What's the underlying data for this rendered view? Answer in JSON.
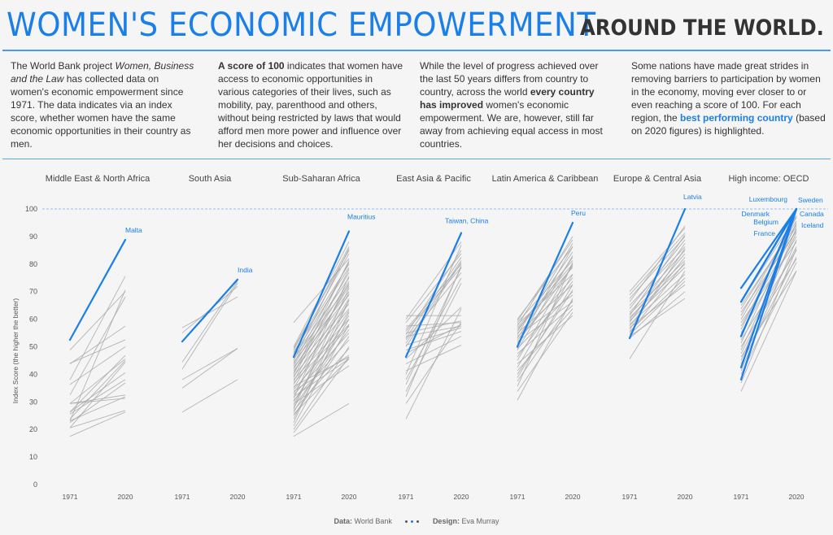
{
  "header": {
    "title_main": "WOMEN'S ECONOMIC EMPOWERMENT",
    "title_sub": "AROUND THE WORLD."
  },
  "intro": [
    {
      "parts": [
        {
          "t": "The World Bank project "
        },
        {
          "t": "Women, Business and the Law",
          "i": true
        },
        {
          "t": " has collected data on women's economic empowerment since 1971. The data indicates via an index score, whether women have the same economic opportunities in their country as men."
        }
      ]
    },
    {
      "parts": [
        {
          "t": "A score of 100",
          "b": true
        },
        {
          "t": " indicates that women have access to economic opportunities in various categories of their lives, such as mobility, pay, parenthood and others, without being restricted by laws that would afford men more power and influence over her decisions and choices."
        }
      ]
    },
    {
      "parts": [
        {
          "t": "While the level of progress achieved over the last 50 years differs from country to country, across the world "
        },
        {
          "t": "every country has improved",
          "b": true
        },
        {
          "t": " women's economic empowerment. We are, however, still far away from achieving equal access in most countries."
        }
      ]
    },
    {
      "parts": [
        {
          "t": "Some nations have made great strides in removing barriers to participation by women in the economy, moving ever closer to or even reaching a score of 100. For each region, the "
        },
        {
          "t": "best performing country",
          "hl": true
        },
        {
          "t": " (based on 2020 figures) is highlighted."
        }
      ]
    }
  ],
  "footer": {
    "data_label": "Data:",
    "data_value": "World Bank",
    "design_label": "Design:",
    "design_value": "Eva Murray"
  },
  "colors": {
    "accent": "#1a7fe8",
    "grey": "#a8a8a8",
    "ref": "#8ec0f5"
  },
  "chart_data": {
    "type": "line",
    "title": "Women's Economic Empowerment around the world",
    "ylabel": "Index Score (the higher the better)",
    "ylim": [
      0,
      100
    ],
    "yticks": [
      0,
      10,
      20,
      30,
      40,
      50,
      60,
      70,
      80,
      90,
      100
    ],
    "x": [
      "1971",
      "2020"
    ],
    "reference_line": 100,
    "panels": [
      {
        "region": "Middle East & North Africa",
        "highlight": [
          {
            "name": "Malta",
            "values": [
              52.5,
              88.8
            ]
          }
        ],
        "others": [
          [
            48.8,
            70
          ],
          [
            44,
            52.5
          ],
          [
            43.8,
            57.5
          ],
          [
            38,
            75.6
          ],
          [
            36.3,
            50
          ],
          [
            32.5,
            68.1
          ],
          [
            29.4,
            45.6
          ],
          [
            29.4,
            31.3
          ],
          [
            29.4,
            32.5
          ],
          [
            26.3,
            46.9
          ],
          [
            26.3,
            40.6
          ],
          [
            25.6,
            38.1
          ],
          [
            23.8,
            45
          ],
          [
            23.1,
            31.9
          ],
          [
            23.1,
            70.6
          ],
          [
            22.5,
            36.9
          ],
          [
            20.6,
            26.9
          ],
          [
            20.6,
            44.4
          ],
          [
            17.5,
            26.3
          ]
        ]
      },
      {
        "region": "South Asia",
        "highlight": [
          {
            "name": "India",
            "values": [
              51.9,
              74.4
            ]
          }
        ],
        "others": [
          [
            56.9,
            68.1
          ],
          [
            55,
            71.9
          ],
          [
            44.4,
            73.8
          ],
          [
            41.9,
            73.1
          ],
          [
            38.1,
            49.4
          ],
          [
            35,
            49.4
          ],
          [
            26.3,
            38.1
          ]
        ]
      },
      {
        "region": "Sub-Saharan Africa",
        "highlight": [
          {
            "name": "Mauritius",
            "values": [
              46.3,
              91.9
            ]
          }
        ],
        "others": [
          [
            58.8,
            82
          ],
          [
            50,
            88.1
          ],
          [
            49.4,
            85
          ],
          [
            48.8,
            86.3
          ],
          [
            48.1,
            80
          ],
          [
            47.5,
            83.8
          ],
          [
            46.9,
            78.8
          ],
          [
            46.3,
            75
          ],
          [
            45.6,
            72.5
          ],
          [
            45,
            85.6
          ],
          [
            44.4,
            70
          ],
          [
            43.8,
            80.6
          ],
          [
            43.1,
            76.9
          ],
          [
            42.5,
            68.8
          ],
          [
            41.9,
            73.8
          ],
          [
            41.3,
            65.6
          ],
          [
            40.6,
            71.9
          ],
          [
            40,
            81.3
          ],
          [
            39.4,
            63.8
          ],
          [
            38.8,
            78.1
          ],
          [
            38.1,
            60
          ],
          [
            37.5,
            73.1
          ],
          [
            36.9,
            58.1
          ],
          [
            36.3,
            69.4
          ],
          [
            35.6,
            46.3
          ],
          [
            35,
            67.5
          ],
          [
            34.4,
            57.5
          ],
          [
            33.8,
            46.9
          ],
          [
            33.1,
            63.1
          ],
          [
            32.5,
            55
          ],
          [
            31.9,
            45.6
          ],
          [
            31.3,
            75.6
          ],
          [
            30.6,
            52.5
          ],
          [
            30,
            61.3
          ],
          [
            29.4,
            43.1
          ],
          [
            28.8,
            66.9
          ],
          [
            28.1,
            56.3
          ],
          [
            27.5,
            71.3
          ],
          [
            26.9,
            49.4
          ],
          [
            26.3,
            60
          ],
          [
            25.6,
            45.6
          ],
          [
            25,
            53.8
          ],
          [
            23.8,
            62.5
          ],
          [
            22.5,
            66.9
          ],
          [
            21.3,
            58.1
          ],
          [
            20,
            50
          ],
          [
            18.8,
            46.3
          ],
          [
            17.5,
            29.4
          ]
        ]
      },
      {
        "region": "East Asia & Pacific",
        "highlight": [
          {
            "name": "Taiwan, China",
            "values": [
              46.3,
              91.3
            ]
          }
        ],
        "others": [
          [
            61.3,
            61.3
          ],
          [
            60,
            88.1
          ],
          [
            58.8,
            83.8
          ],
          [
            57.5,
            58.8
          ],
          [
            56.3,
            80
          ],
          [
            55.6,
            78.8
          ],
          [
            55,
            59.4
          ],
          [
            54.4,
            85
          ],
          [
            53.8,
            57.5
          ],
          [
            53.1,
            82.5
          ],
          [
            52.5,
            76.9
          ],
          [
            51.3,
            81.3
          ],
          [
            50.6,
            56.9
          ],
          [
            50,
            80.6
          ],
          [
            48.8,
            55.6
          ],
          [
            47.5,
            58.1
          ],
          [
            45.6,
            64.4
          ],
          [
            43.8,
            53.8
          ],
          [
            41.3,
            50.6
          ],
          [
            40,
            86.9
          ],
          [
            38.1,
            75
          ],
          [
            36.3,
            78.8
          ],
          [
            33.8,
            73.1
          ],
          [
            31.9,
            79.4
          ],
          [
            29.4,
            58.8
          ],
          [
            23.8,
            63.8
          ]
        ]
      },
      {
        "region": "Latin America & Caribbean",
        "highlight": [
          {
            "name": "Peru",
            "values": [
              50,
              95
            ]
          }
        ],
        "others": [
          [
            60,
            86.3
          ],
          [
            59.4,
            88.8
          ],
          [
            58.8,
            81.3
          ],
          [
            58.1,
            76.3
          ],
          [
            57.5,
            90
          ],
          [
            56.9,
            80
          ],
          [
            56.3,
            78.8
          ],
          [
            55.6,
            84.4
          ],
          [
            55,
            72.5
          ],
          [
            54.4,
            87.5
          ],
          [
            53.8,
            68.8
          ],
          [
            53.1,
            82.5
          ],
          [
            52.5,
            75
          ],
          [
            51.9,
            66.3
          ],
          [
            51.3,
            79.4
          ],
          [
            50.6,
            86.3
          ],
          [
            49.4,
            70
          ],
          [
            48.8,
            83.1
          ],
          [
            47.5,
            65
          ],
          [
            46.3,
            73.8
          ],
          [
            45,
            80
          ],
          [
            43.8,
            61.3
          ],
          [
            42.5,
            76.3
          ],
          [
            41.3,
            63.8
          ],
          [
            40,
            70.6
          ],
          [
            38.8,
            72.5
          ],
          [
            37.5,
            66.9
          ],
          [
            35.6,
            80.6
          ],
          [
            33.8,
            62.5
          ],
          [
            30.6,
            67.5
          ]
        ]
      },
      {
        "region": "Europe & Central Asia",
        "highlight": [
          {
            "name": "Latvia",
            "values": [
              53.1,
              100
            ]
          }
        ],
        "others": [
          [
            70,
            93.1
          ],
          [
            68.8,
            91.3
          ],
          [
            67.5,
            90
          ],
          [
            66.3,
            93.8
          ],
          [
            65,
            86.3
          ],
          [
            63.8,
            88.8
          ],
          [
            62.5,
            85
          ],
          [
            61.9,
            81.3
          ],
          [
            61.3,
            90.6
          ],
          [
            60.6,
            80
          ],
          [
            60,
            83.8
          ],
          [
            59.4,
            78.8
          ],
          [
            58.8,
            87.5
          ],
          [
            58.1,
            76.3
          ],
          [
            57.5,
            82.5
          ],
          [
            56.9,
            72.5
          ],
          [
            56.3,
            85.6
          ],
          [
            55.6,
            75
          ],
          [
            55,
            80.6
          ],
          [
            54.4,
            73.8
          ],
          [
            53.8,
            67.5
          ],
          [
            53.1,
            70
          ],
          [
            45.6,
            77.5
          ]
        ]
      },
      {
        "region": "High income: OECD",
        "highlight": [
          {
            "name": "Luxembourg",
            "values": [
              71.3,
              100
            ]
          },
          {
            "name": "Denmark",
            "values": [
              66.3,
              100
            ]
          },
          {
            "name": "Belgium",
            "values": [
              53.8,
              100
            ]
          },
          {
            "name": "France",
            "values": [
              42.5,
              100
            ]
          },
          {
            "name": "Sweden",
            "values": [
              38.1,
              100
            ]
          },
          {
            "name": "Canada",
            "values": [
              66.3,
              100
            ]
          },
          {
            "name": "Iceland",
            "values": [
              53.8,
              100
            ]
          }
        ],
        "others": [
          [
            66.3,
            97.5
          ],
          [
            65,
            94.4
          ],
          [
            63.8,
            95.6
          ],
          [
            62.5,
            91.9
          ],
          [
            61.3,
            96.9
          ],
          [
            60,
            93.8
          ],
          [
            58.8,
            88.1
          ],
          [
            57.5,
            92.5
          ],
          [
            56.3,
            97.5
          ],
          [
            55,
            90
          ],
          [
            52.5,
            85
          ],
          [
            51.3,
            95
          ],
          [
            50,
            81.9
          ],
          [
            48.8,
            91.3
          ],
          [
            47.5,
            86.3
          ],
          [
            46.3,
            77.5
          ],
          [
            45,
            93.1
          ],
          [
            43.8,
            82.5
          ],
          [
            41.3,
            88.8
          ],
          [
            40,
            80.6
          ],
          [
            36.9,
            85.6
          ],
          [
            33.8,
            77.5
          ]
        ]
      }
    ]
  }
}
